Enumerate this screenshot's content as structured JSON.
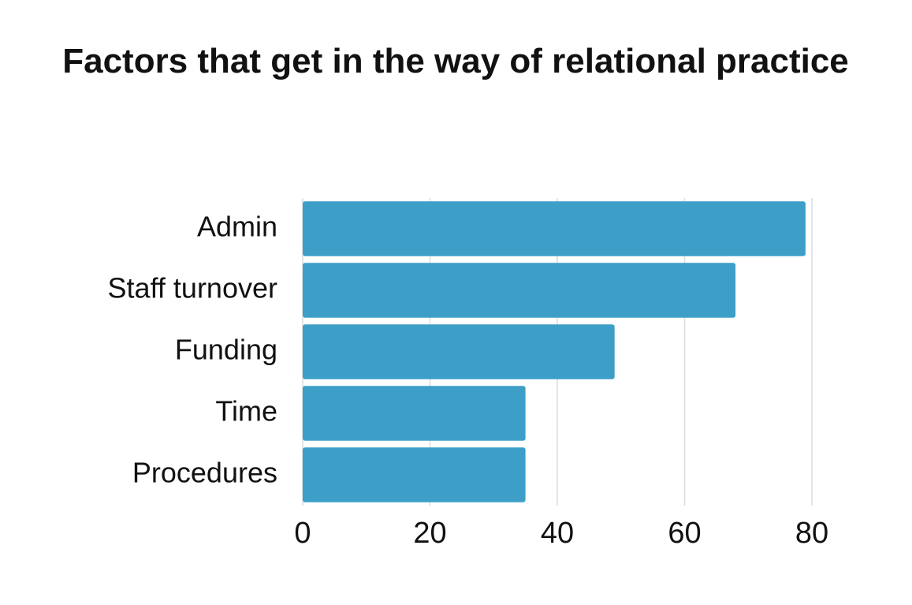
{
  "chart_data": {
    "type": "bar",
    "orientation": "horizontal",
    "title": "Factors that get in the way of relational practice",
    "categories": [
      "Admin",
      "Staff turnover",
      "Funding",
      "Time",
      "Procedures"
    ],
    "values": [
      79,
      68,
      49,
      35,
      35
    ],
    "color": "#3d9fc8",
    "xlim": [
      0,
      80
    ],
    "xticks": [
      0,
      20,
      40,
      60,
      80
    ],
    "grid": true
  }
}
